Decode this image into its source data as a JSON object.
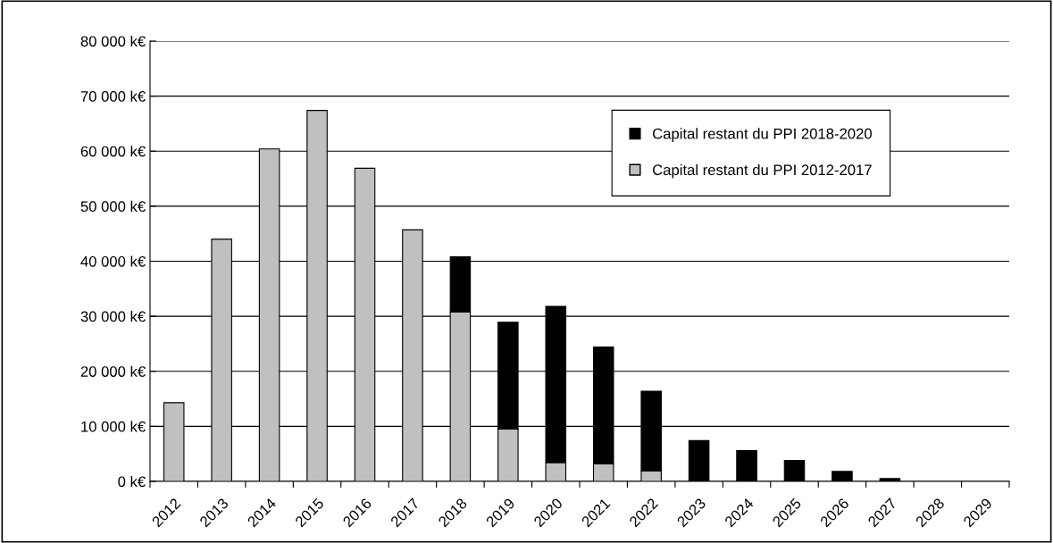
{
  "chart_data": {
    "type": "bar",
    "stacked": true,
    "categories": [
      "2012",
      "2013",
      "2014",
      "2015",
      "2016",
      "2017",
      "2018",
      "2019",
      "2020",
      "2021",
      "2022",
      "2023",
      "2024",
      "2025",
      "2026",
      "2027",
      "2028",
      "2029"
    ],
    "series": [
      {
        "name": "Capital restant du PPI 2012-2017",
        "color": "#c0c0c0",
        "values": [
          14300,
          44000,
          60400,
          67400,
          56900,
          45700,
          30800,
          9500,
          3400,
          3200,
          1900,
          null,
          0,
          0,
          0,
          0,
          0,
          0
        ]
      },
      {
        "name": "Capital restant du PPI 2018-2020",
        "color": "#000000",
        "values": [
          0,
          0,
          0,
          0,
          0,
          0,
          10000,
          19400,
          28400,
          21200,
          14500,
          7400,
          5600,
          3800,
          1800,
          500,
          0,
          0
        ]
      }
    ],
    "ylim": [
      0,
      80000
    ],
    "yticks": [
      {
        "value": 0,
        "label": "0 k€"
      },
      {
        "value": 10000,
        "label": "10 000 k€"
      },
      {
        "value": 20000,
        "label": "20 000 k€"
      },
      {
        "value": 30000,
        "label": "30 000 k€"
      },
      {
        "value": 40000,
        "label": "40 000 k€"
      },
      {
        "value": 50000,
        "label": "50 000 k€"
      },
      {
        "value": 60000,
        "label": "60 000 k€"
      },
      {
        "value": 70000,
        "label": "70 000 k€"
      },
      {
        "value": 80000,
        "label": "80 000 k€"
      }
    ],
    "grid": "y",
    "legend": "top right"
  }
}
